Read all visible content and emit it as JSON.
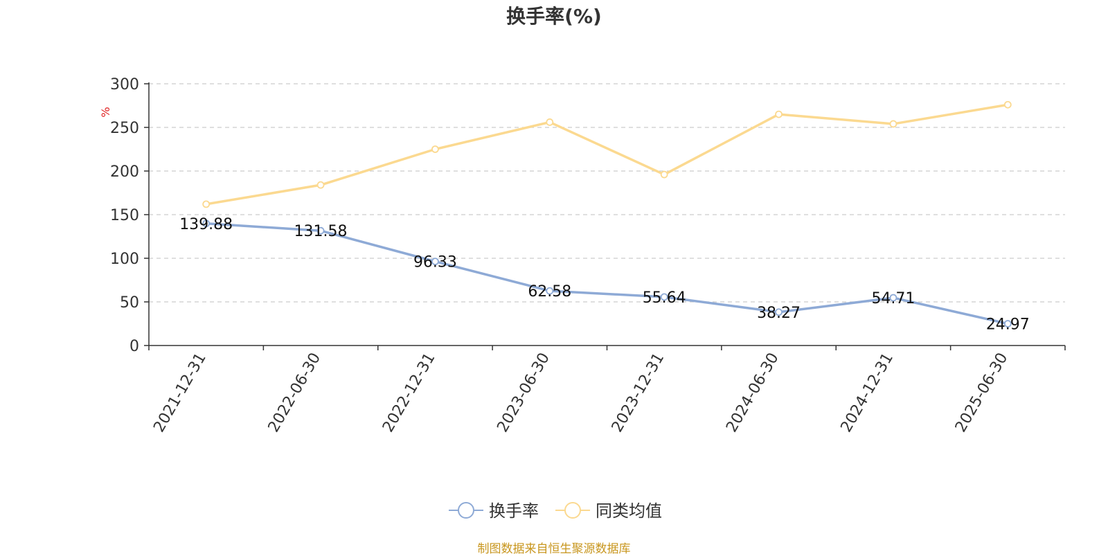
{
  "chart_data": {
    "type": "line",
    "title": "换手率(%)",
    "ylabel": "%",
    "xlabel": "",
    "ylim": [
      0,
      300
    ],
    "yticks": [
      0,
      50,
      100,
      150,
      200,
      250,
      300
    ],
    "grid": true,
    "legend_position": "bottom",
    "categories": [
      "2021-12-31",
      "2022-06-30",
      "2022-12-31",
      "2023-06-30",
      "2023-12-31",
      "2024-06-30",
      "2024-12-31",
      "2025-06-30"
    ],
    "series": [
      {
        "name": "换手率",
        "color": "#8eaad6",
        "values": [
          139.88,
          131.58,
          96.33,
          62.58,
          55.64,
          38.27,
          54.71,
          24.97
        ],
        "labels": [
          "139.88",
          "131.58",
          "96.33",
          "62.58",
          "55.64",
          "38.27",
          "54.71",
          "24.97"
        ]
      },
      {
        "name": "同类均值",
        "color": "#fbd990",
        "values": [
          162,
          184,
          225,
          256,
          196,
          265,
          254,
          276
        ]
      }
    ],
    "source_note": "制图数据来自恒生聚源数据库",
    "ylabel_color": "#e02020",
    "source_color": "#c8961e"
  }
}
